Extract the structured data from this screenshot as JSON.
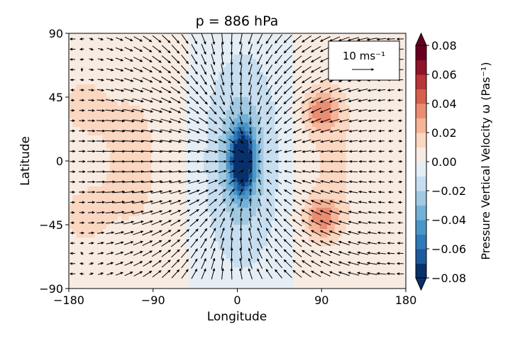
{
  "chart_data": {
    "type": "heatmap",
    "title": "p = 886 hPa",
    "xlabel": "Longitude",
    "ylabel": "Latitude",
    "xlim": [
      -180,
      180
    ],
    "ylim": [
      -90,
      90
    ],
    "xticks": [
      "−180",
      "−90",
      "0",
      "90",
      "180"
    ],
    "yticks": [
      "90",
      "45",
      "0",
      "−45",
      "−90"
    ],
    "colorbar": {
      "label": "Pressure Vertical Velocity ω (Pas⁻¹)",
      "ticks": [
        "0.08",
        "0.06",
        "0.04",
        "0.02",
        "0.00",
        "−0.02",
        "−0.04",
        "−0.06",
        "−0.08"
      ],
      "range": [
        -0.08,
        0.08
      ],
      "levels": 16,
      "colors": [
        "#08306b",
        "#1d5a9c",
        "#2f7ab8",
        "#4b96c7",
        "#74b1d6",
        "#a1cae2",
        "#c7def0",
        "#e6eef5",
        "#f8ebe2",
        "#fbd6c0",
        "#f6b498",
        "#ea8d73",
        "#d6604d",
        "#b8353a",
        "#8e1527",
        "#67001f"
      ]
    },
    "field": {
      "descending_maximum": {
        "lon": 90,
        "lat": 35,
        "omega": 0.03
      },
      "descending_maximum_south": {
        "lon": 90,
        "lat": -40,
        "omega": 0.03
      },
      "ascending_minimum": {
        "lon": 5,
        "lat": 0,
        "omega": -0.08
      }
    },
    "quiver_key": {
      "label": "10 ms⁻¹",
      "magnitude": 10
    },
    "grid": false
  }
}
